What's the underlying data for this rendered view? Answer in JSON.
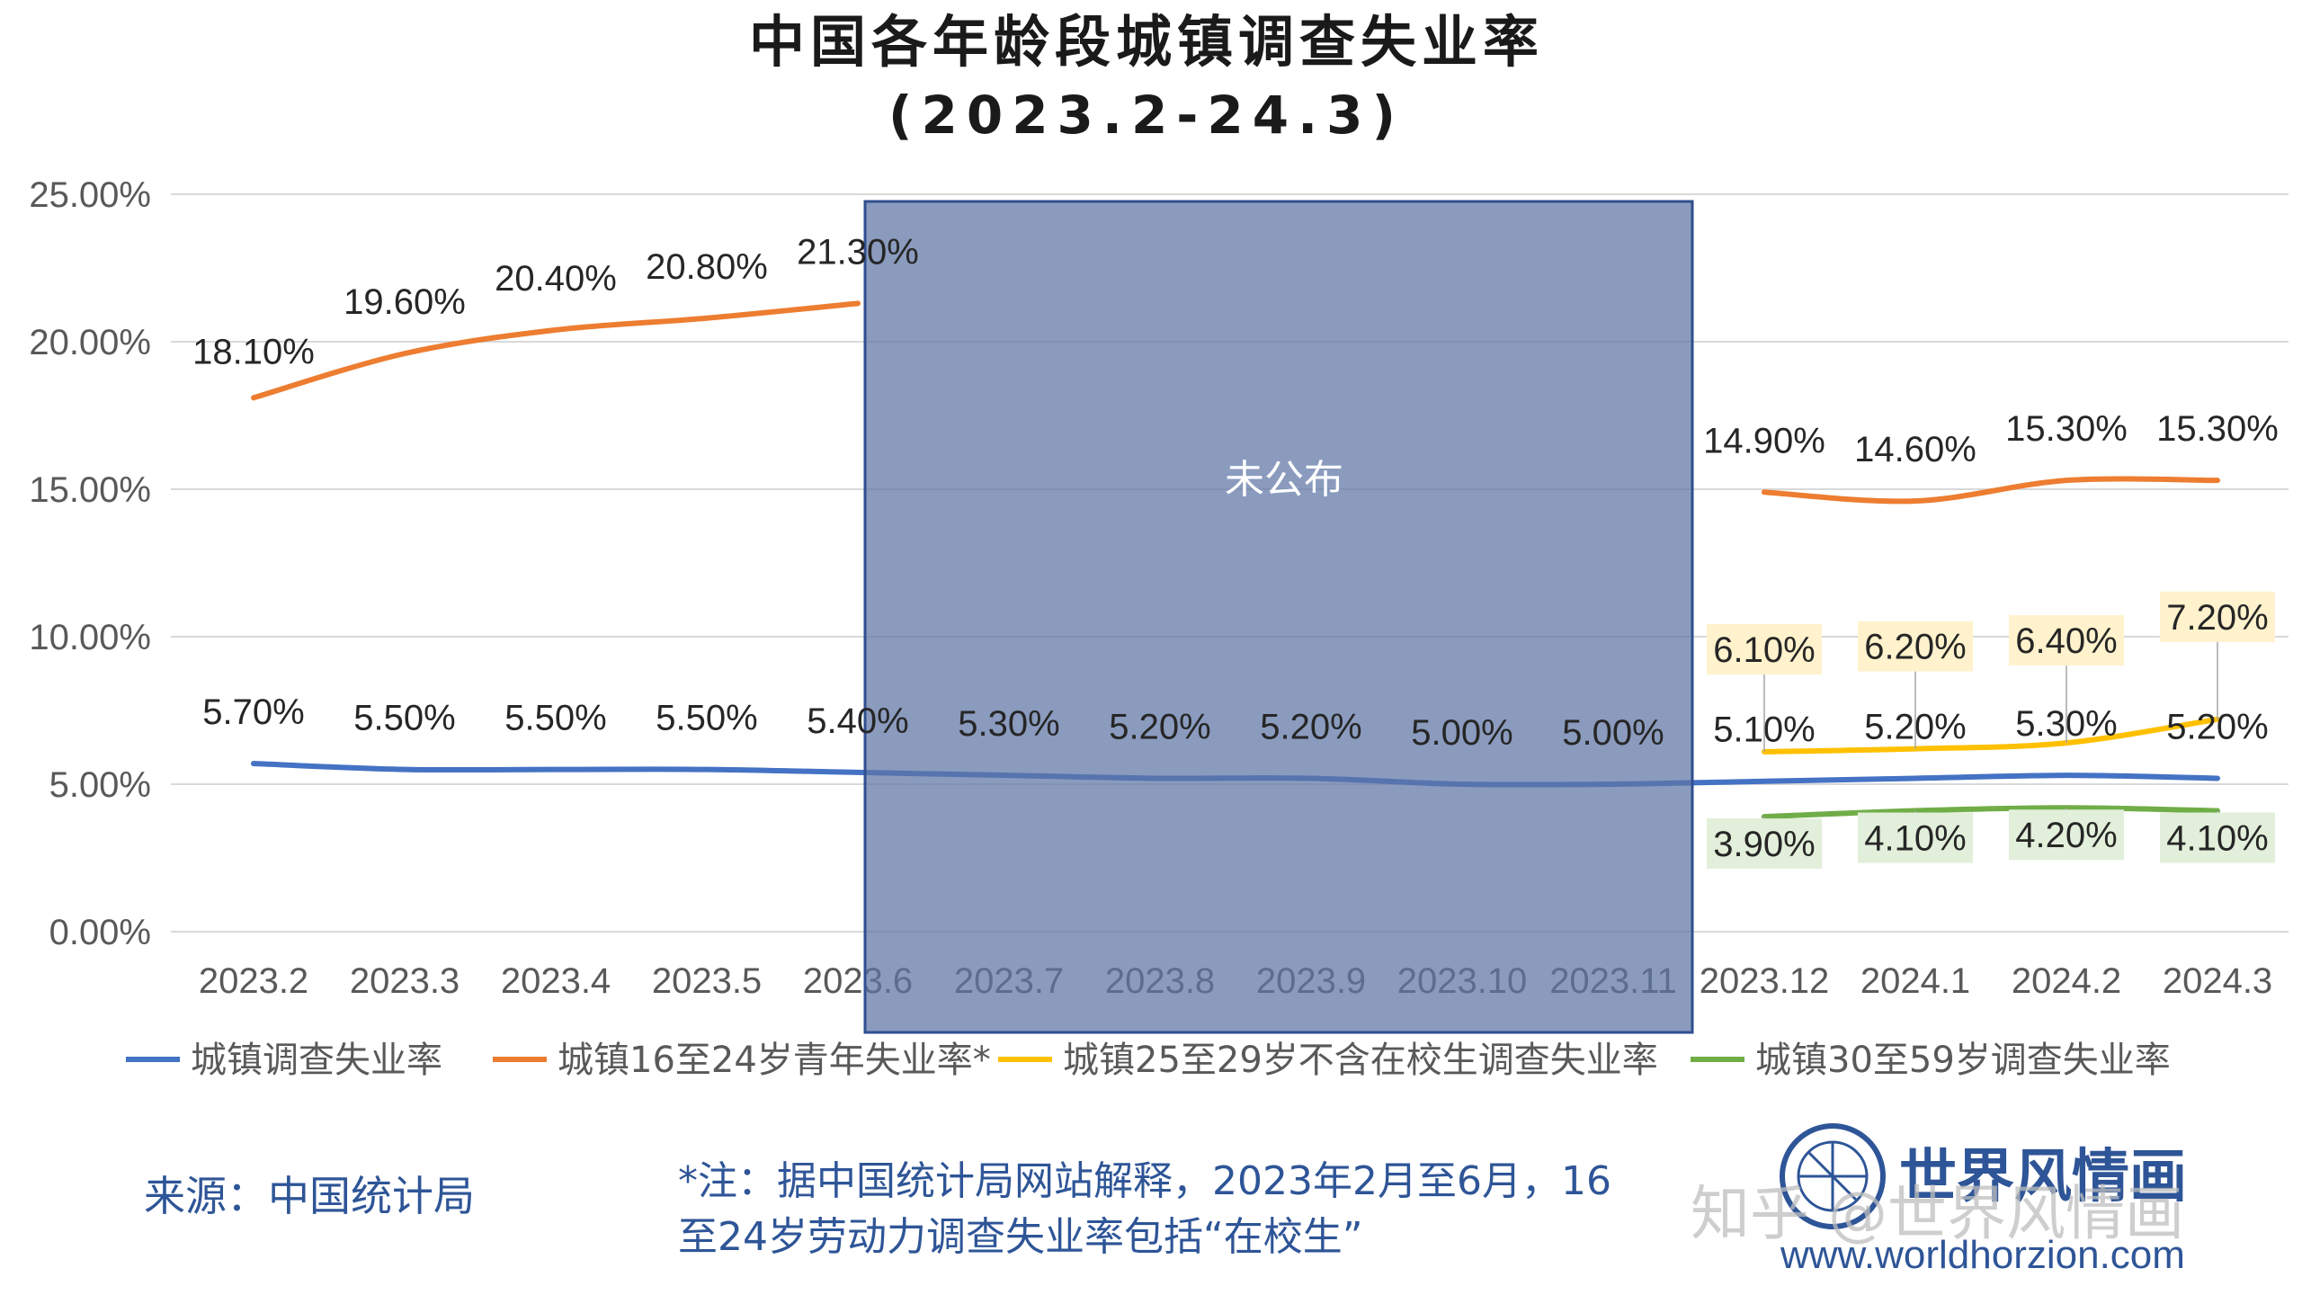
{
  "title": "中国各年龄段城镇调查失业率",
  "subtitle": "(2023.2-24.3)",
  "chart_data": {
    "type": "line",
    "title": "中国各年龄段城镇调查失业率",
    "subtitle": "(2023.2-24.3)",
    "xlabel": "",
    "ylabel": "",
    "ylim": [
      0,
      25
    ],
    "yticks": [
      "0.00%",
      "5.00%",
      "10.00%",
      "15.00%",
      "20.00%",
      "25.00%"
    ],
    "grid": true,
    "legend_position": "bottom",
    "categories": [
      "2023.2",
      "2023.3",
      "2023.4",
      "2023.5",
      "2023.6",
      "2023.7",
      "2023.8",
      "2023.9",
      "2023.10",
      "2023.11",
      "2023.12",
      "2024.1",
      "2024.2",
      "2024.3"
    ],
    "series": [
      {
        "name": "城镇调查失业率",
        "color": "#4472C4",
        "values": [
          5.7,
          5.5,
          5.5,
          5.5,
          5.4,
          5.3,
          5.2,
          5.2,
          5.0,
          5.0,
          5.1,
          5.2,
          5.3,
          5.2
        ],
        "labels": [
          "5.70%",
          "5.50%",
          "5.50%",
          "5.50%",
          "5.40%",
          "5.30%",
          "5.20%",
          "5.20%",
          "5.00%",
          "5.00%",
          "5.10%",
          "5.20%",
          "5.30%",
          "5.20%"
        ]
      },
      {
        "name": "城镇16至24岁青年失业率*",
        "color": "#ED7D31",
        "values": [
          18.1,
          19.6,
          20.4,
          20.8,
          21.3,
          null,
          null,
          null,
          null,
          null,
          14.9,
          14.6,
          15.3,
          15.3
        ],
        "labels": [
          "18.10%",
          "19.60%",
          "20.40%",
          "20.80%",
          "21.30%",
          null,
          null,
          null,
          null,
          null,
          "14.90%",
          "14.60%",
          "15.30%",
          "15.30%"
        ]
      },
      {
        "name": "城镇25至29岁不含在校生调查失业率",
        "color": "#FFC000",
        "values": [
          null,
          null,
          null,
          null,
          null,
          null,
          null,
          null,
          null,
          null,
          6.1,
          6.2,
          6.4,
          7.2
        ],
        "labels": [
          null,
          null,
          null,
          null,
          null,
          null,
          null,
          null,
          null,
          null,
          "6.10%",
          "6.20%",
          "6.40%",
          "7.20%"
        ]
      },
      {
        "name": "城镇30至59岁调查失业率",
        "color": "#70AD47",
        "values": [
          null,
          null,
          null,
          null,
          null,
          null,
          null,
          null,
          null,
          null,
          3.9,
          4.1,
          4.2,
          4.1
        ],
        "labels": [
          null,
          null,
          null,
          null,
          null,
          null,
          null,
          null,
          null,
          null,
          "3.90%",
          "4.10%",
          "4.20%",
          "4.10%"
        ]
      }
    ],
    "annotations": [
      {
        "text": "未公布",
        "from": "2023.6",
        "to": "2023.11"
      }
    ]
  },
  "shaded_region_label": "未公布",
  "source": "来源：中国统计局",
  "note_line1": "*注：据中国统计局网站解释，2023年2月至6月，16",
  "note_line2": "至24岁劳动力调查失业率包括“在校生”",
  "brand": {
    "name": "世界风情画",
    "url": "www.worldhorzion.com",
    "watermark": "知乎 @世界风情画"
  }
}
